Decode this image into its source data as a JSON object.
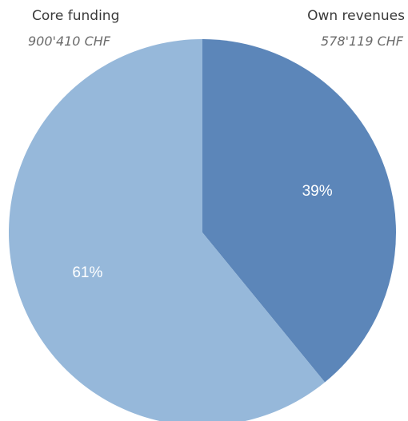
{
  "chart_data": {
    "type": "pie",
    "series": [
      {
        "label": "Own revenues",
        "amount": "578'119 CHF",
        "value": 578119,
        "percent_label": "39%",
        "color": "#5c86b9"
      },
      {
        "label": "Core funding",
        "amount": "900'410 CHF",
        "value": 900410,
        "percent_label": "61%",
        "color": "#96b8da"
      }
    ]
  }
}
